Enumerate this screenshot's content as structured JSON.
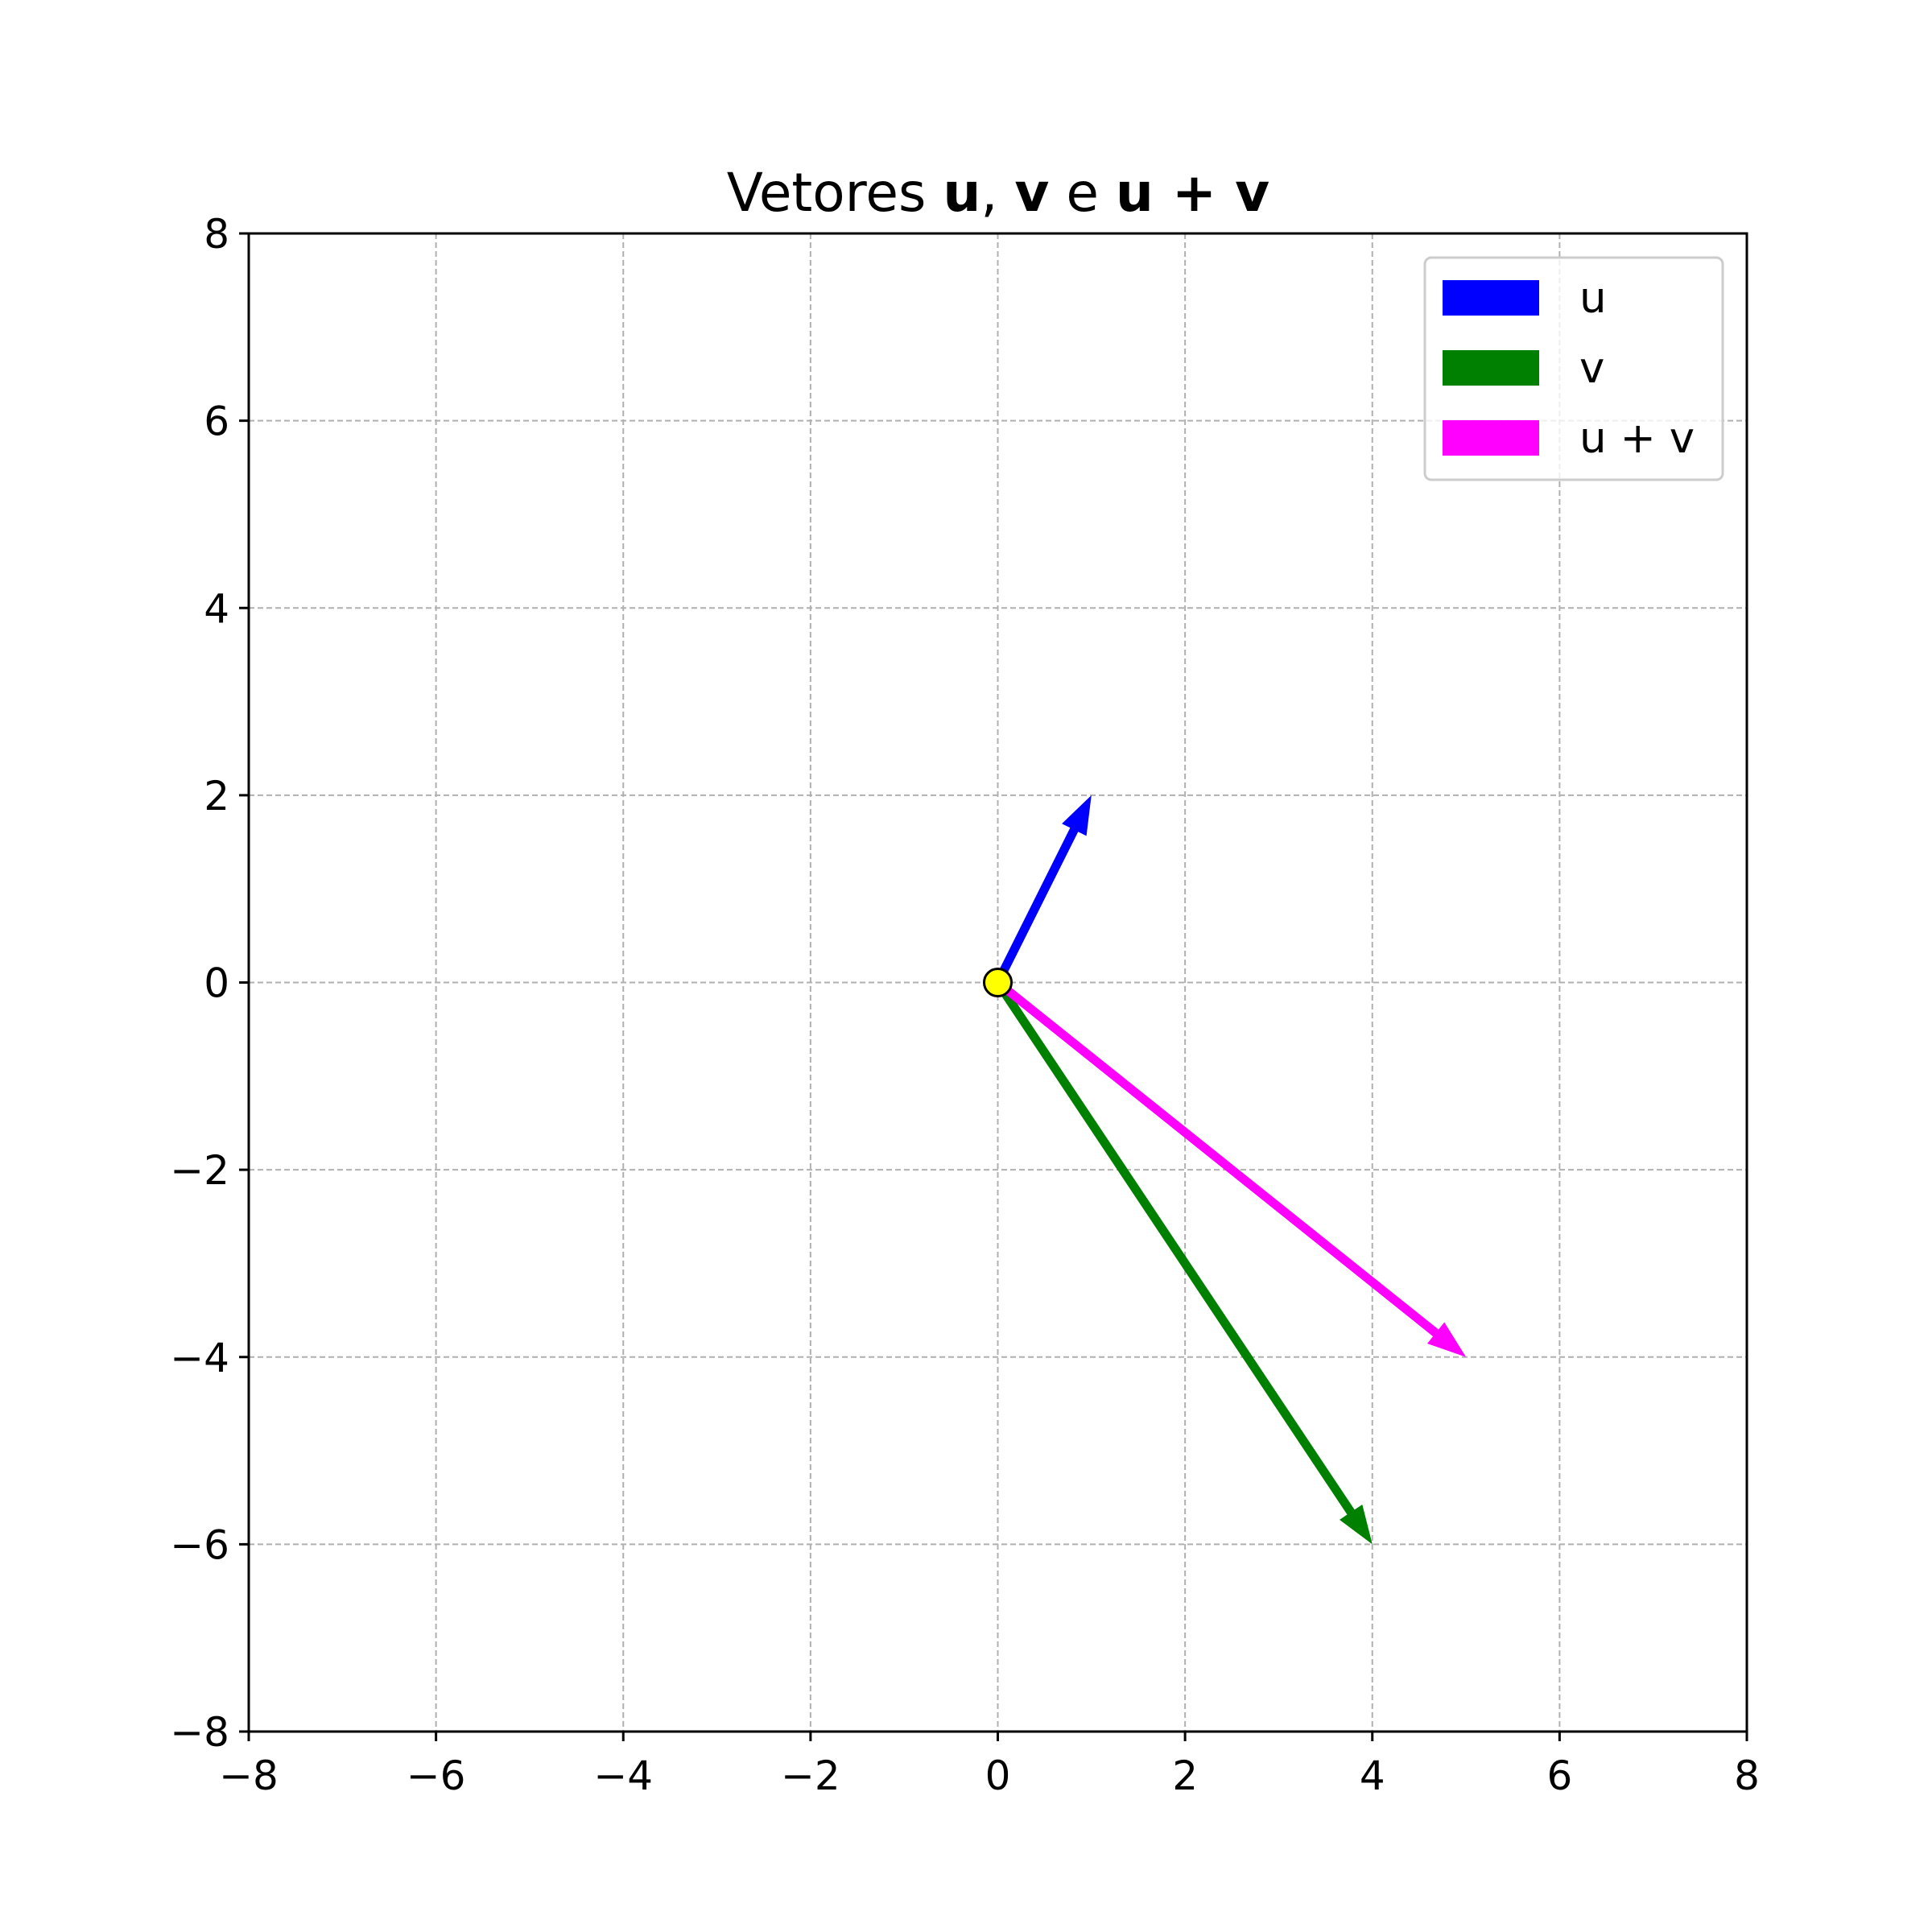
{
  "chart_data": {
    "type": "quiver",
    "title": {
      "parts": [
        {
          "text": "Vetores ",
          "bold": false
        },
        {
          "text": "u",
          "bold": true
        },
        {
          "text": ", ",
          "bold": false
        },
        {
          "text": "v",
          "bold": true
        },
        {
          "text": " e ",
          "bold": false
        },
        {
          "text": "u + v",
          "bold": true
        }
      ]
    },
    "xlabel": "",
    "ylabel": "",
    "xlim": [
      -8,
      8
    ],
    "ylim": [
      -8,
      8
    ],
    "xticks": [
      -8,
      -6,
      -4,
      -2,
      0,
      2,
      4,
      6,
      8
    ],
    "yticks": [
      -8,
      -6,
      -4,
      -2,
      0,
      2,
      4,
      6,
      8
    ],
    "xtick_labels": [
      "−8",
      "−6",
      "−4",
      "−2",
      "0",
      "2",
      "4",
      "6",
      "8"
    ],
    "ytick_labels": [
      "−8",
      "−6",
      "−4",
      "−2",
      "0",
      "2",
      "4",
      "6",
      "8"
    ],
    "grid": true,
    "legend_position": "top-right",
    "origin_marker": {
      "x": 0,
      "y": 0,
      "color": "#ffff00"
    },
    "series": [
      {
        "name": "u",
        "color": "#0000ff",
        "start": [
          0,
          0
        ],
        "end": [
          1,
          2
        ]
      },
      {
        "name": "v",
        "color": "#008000",
        "start": [
          0,
          0
        ],
        "end": [
          4,
          -6
        ]
      },
      {
        "name": "u + v",
        "color": "#ff00ff",
        "start": [
          0,
          0
        ],
        "end": [
          5,
          -4
        ]
      }
    ]
  }
}
